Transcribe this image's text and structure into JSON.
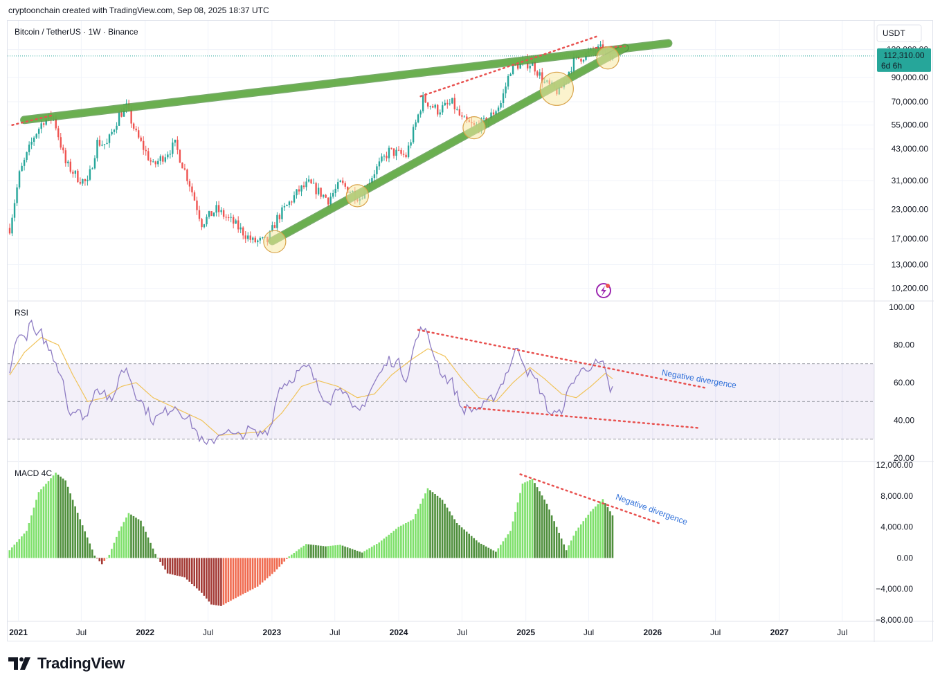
{
  "header": {
    "text": "cryptoonchain created with TradingView.com, Sep 08, 2025 18:37 UTC"
  },
  "symbol": {
    "text": "Bitcoin / TetherUS · 1W · Binance"
  },
  "currency": {
    "text": "USDT"
  },
  "price_badge": {
    "price": "112,310.00",
    "countdown": "6d 6h",
    "color": "#26a69a"
  },
  "footer": {
    "brand": "TradingView"
  },
  "colors": {
    "up": "#26a69a",
    "down": "#ef5350",
    "channel": "#6ab04c",
    "trend_dots": "#e8514f",
    "rsi": "#8e7cc3",
    "rsi_ma": "#f0c35a",
    "circle": "#f7e9a4",
    "text": "#131722",
    "annotation": "#2e6fd9"
  },
  "chart_data": [
    {
      "type": "candlestick",
      "title": "Bitcoin / TetherUS · 1W · Binance",
      "scale": "log",
      "ylim": [
        9000,
        140000
      ],
      "yticks": [
        "120,000.00",
        "90,000.00",
        "70,000.00",
        "55,000.00",
        "43,000.00",
        "31,000.00",
        "23,000.00",
        "17,000.00",
        "13,000.00",
        "10,200.00"
      ],
      "ytick_values": [
        120000,
        90000,
        70000,
        55000,
        43000,
        31000,
        23000,
        17000,
        13000,
        10200
      ],
      "x_range": [
        "2020-12-01",
        "2027-10-01"
      ],
      "xticks": [
        "2021",
        "Jul",
        "2022",
        "Jul",
        "2023",
        "Jul",
        "2024",
        "Jul",
        "2025",
        "Jul",
        "2026",
        "Jul",
        "2027",
        "Jul"
      ],
      "xtick_dates": [
        "2021-01-01",
        "2021-07-01",
        "2022-01-01",
        "2022-07-01",
        "2023-01-01",
        "2023-07-01",
        "2024-01-01",
        "2024-07-01",
        "2025-01-01",
        "2025-07-01",
        "2026-01-01",
        "2026-07-01",
        "2027-01-01",
        "2027-07-01"
      ],
      "close_path": [
        [
          "2020-12-07",
          19000
        ],
        [
          "2021-01-04",
          33000
        ],
        [
          "2021-02-15",
          49000
        ],
        [
          "2021-03-15",
          58000
        ],
        [
          "2021-04-12",
          60000
        ],
        [
          "2021-05-17",
          37000
        ],
        [
          "2021-06-21",
          32000
        ],
        [
          "2021-07-19",
          30000
        ],
        [
          "2021-08-16",
          46000
        ],
        [
          "2021-09-13",
          45000
        ],
        [
          "2021-10-18",
          61000
        ],
        [
          "2021-11-08",
          66000
        ],
        [
          "2021-12-06",
          50000
        ],
        [
          "2022-01-24",
          36000
        ],
        [
          "2022-03-28",
          45000
        ],
        [
          "2022-05-09",
          30000
        ],
        [
          "2022-06-13",
          20000
        ],
        [
          "2022-07-25",
          23000
        ],
        [
          "2022-09-12",
          20000
        ],
        [
          "2022-11-07",
          16500
        ],
        [
          "2022-12-19",
          16600
        ],
        [
          "2023-01-16",
          21000
        ],
        [
          "2023-03-20",
          28000
        ],
        [
          "2023-04-17",
          30000
        ],
        [
          "2023-06-12",
          25500
        ],
        [
          "2023-07-17",
          30000
        ],
        [
          "2023-09-11",
          26000
        ],
        [
          "2023-10-23",
          34000
        ],
        [
          "2023-12-04",
          42000
        ],
        [
          "2024-01-22",
          40000
        ],
        [
          "2024-03-11",
          72000
        ],
        [
          "2024-04-22",
          64000
        ],
        [
          "2024-06-03",
          69000
        ],
        [
          "2024-07-01",
          58000
        ],
        [
          "2024-08-05",
          54000
        ],
        [
          "2024-09-09",
          57000
        ],
        [
          "2024-10-21",
          69000
        ],
        [
          "2024-11-18",
          98000
        ],
        [
          "2024-12-16",
          104000
        ],
        [
          "2025-01-20",
          104000
        ],
        [
          "2025-02-24",
          85000
        ],
        [
          "2025-04-07",
          77000
        ],
        [
          "2025-05-19",
          107000
        ],
        [
          "2025-07-14",
          118000
        ],
        [
          "2025-08-11",
          121000
        ],
        [
          "2025-09-01",
          111000
        ],
        [
          "2025-09-08",
          112310
        ]
      ],
      "last_price": 112310,
      "rising_wedge": {
        "upper_line": [
          [
            "2021-01-18",
            58000
          ],
          [
            "2026-02-15",
            128000
          ]
        ],
        "lower_line": [
          [
            "2023-01-02",
            16600
          ],
          [
            "2025-10-13",
            122000
          ]
        ]
      },
      "trend_lines": [
        [
          [
            "2020-12-14",
            55000
          ],
          [
            "2021-04-12",
            61000
          ]
        ],
        [
          [
            "2024-03-04",
            74000
          ],
          [
            "2025-07-28",
            138000
          ]
        ],
        [
          [
            "2025-07-21",
            122000
          ],
          [
            "2025-10-13",
            124000
          ]
        ]
      ],
      "touch_circles": [
        [
          "2023-01-09",
          16500
        ],
        [
          "2023-09-04",
          26500
        ],
        [
          "2024-08-05",
          53500
        ],
        [
          "2025-03-31",
          80000
        ],
        [
          "2025-08-25",
          110000
        ]
      ]
    },
    {
      "type": "line",
      "title": "RSI",
      "ylim": [
        20,
        100
      ],
      "yticks": [
        "100.00",
        "80.00",
        "60.00",
        "40.00",
        "20.00"
      ],
      "ytick_values": [
        100,
        80,
        60,
        40,
        20
      ],
      "bands": [
        30,
        50,
        70
      ],
      "series": [
        {
          "values": [
            [
              "2020-12-07",
              68
            ],
            [
              "2020-12-21",
              78
            ],
            [
              "2021-01-04",
              88
            ],
            [
              "2021-01-18",
              82
            ],
            [
              "2021-02-08",
              92
            ],
            [
              "2021-02-22",
              83
            ],
            [
              "2021-03-08",
              86
            ],
            [
              "2021-03-29",
              78
            ],
            [
              "2021-04-12",
              74
            ],
            [
              "2021-05-10",
              62
            ],
            [
              "2021-05-24",
              46
            ],
            [
              "2021-06-21",
              44
            ],
            [
              "2021-07-19",
              42
            ],
            [
              "2021-08-09",
              58
            ],
            [
              "2021-09-06",
              55
            ],
            [
              "2021-09-27",
              48
            ],
            [
              "2021-10-18",
              64
            ],
            [
              "2021-11-08",
              68
            ],
            [
              "2021-12-06",
              54
            ],
            [
              "2022-01-03",
              46
            ],
            [
              "2022-01-24",
              40
            ],
            [
              "2022-03-28",
              48
            ],
            [
              "2022-05-09",
              40
            ],
            [
              "2022-06-13",
              29
            ],
            [
              "2022-06-27",
              26
            ],
            [
              "2022-08-15",
              35
            ],
            [
              "2022-09-19",
              31
            ],
            [
              "2022-10-31",
              35
            ],
            [
              "2022-11-21",
              32
            ],
            [
              "2022-12-26",
              36
            ],
            [
              "2023-01-23",
              58
            ],
            [
              "2023-02-20",
              61
            ],
            [
              "2023-03-20",
              66
            ],
            [
              "2023-04-17",
              68
            ],
            [
              "2023-05-22",
              54
            ],
            [
              "2023-06-19",
              51
            ],
            [
              "2023-07-17",
              60
            ],
            [
              "2023-08-21",
              45
            ],
            [
              "2023-09-11",
              45
            ],
            [
              "2023-10-23",
              60
            ],
            [
              "2023-12-04",
              72
            ],
            [
              "2024-01-01",
              70
            ],
            [
              "2024-01-22",
              62
            ],
            [
              "2024-02-19",
              82
            ],
            [
              "2024-03-11",
              90
            ],
            [
              "2024-04-01",
              80
            ],
            [
              "2024-05-06",
              64
            ],
            [
              "2024-06-03",
              60
            ],
            [
              "2024-07-01",
              46
            ],
            [
              "2024-08-05",
              46
            ],
            [
              "2024-09-09",
              48
            ],
            [
              "2024-10-14",
              56
            ],
            [
              "2024-11-18",
              70
            ],
            [
              "2024-12-09",
              79
            ],
            [
              "2025-01-06",
              66
            ],
            [
              "2025-02-03",
              60
            ],
            [
              "2025-03-10",
              44
            ],
            [
              "2025-04-07",
              43
            ],
            [
              "2025-05-19",
              62
            ],
            [
              "2025-06-16",
              67
            ],
            [
              "2025-07-14",
              70
            ],
            [
              "2025-08-11",
              69
            ],
            [
              "2025-09-01",
              56
            ],
            [
              "2025-09-08",
              57
            ]
          ],
          "color": "#8e7cc3"
        },
        {
          "values": [
            [
              "2020-12-07",
              64
            ],
            [
              "2021-01-18",
              76
            ],
            [
              "2021-03-08",
              84
            ],
            [
              "2021-04-26",
              80
            ],
            [
              "2021-06-07",
              64
            ],
            [
              "2021-07-19",
              50
            ],
            [
              "2021-09-06",
              52
            ],
            [
              "2021-10-25",
              58
            ],
            [
              "2021-12-06",
              60
            ],
            [
              "2022-01-24",
              52
            ],
            [
              "2022-04-04",
              46
            ],
            [
              "2022-06-13",
              40
            ],
            [
              "2022-08-01",
              32
            ],
            [
              "2022-10-03",
              33
            ],
            [
              "2022-12-05",
              34
            ],
            [
              "2023-01-30",
              44
            ],
            [
              "2023-03-27",
              58
            ],
            [
              "2023-05-15",
              61
            ],
            [
              "2023-07-10",
              58
            ],
            [
              "2023-09-04",
              52
            ],
            [
              "2023-10-23",
              54
            ],
            [
              "2023-12-11",
              64
            ],
            [
              "2024-02-05",
              72
            ],
            [
              "2024-03-25",
              78
            ],
            [
              "2024-05-13",
              74
            ],
            [
              "2024-07-01",
              62
            ],
            [
              "2024-08-19",
              52
            ],
            [
              "2024-10-07",
              50
            ],
            [
              "2024-11-25",
              60
            ],
            [
              "2025-01-13",
              68
            ],
            [
              "2025-02-24",
              62
            ],
            [
              "2025-04-14",
              54
            ],
            [
              "2025-05-26",
              52
            ],
            [
              "2025-07-07",
              58
            ],
            [
              "2025-08-18",
              65
            ],
            [
              "2025-09-08",
              62
            ]
          ],
          "color": "#f0c35a"
        }
      ],
      "trend_lines": [
        [
          [
            "2024-02-26",
            88
          ],
          [
            "2026-06-08",
            57
          ]
        ],
        [
          [
            "2024-07-08",
            47
          ],
          [
            "2026-05-11",
            36
          ]
        ]
      ],
      "annotation": {
        "text": "Negative divergence",
        "x": "2026-01-26",
        "y": 64
      }
    },
    {
      "type": "bar",
      "title": "MACD 4C",
      "ylim": [
        -8000,
        12000
      ],
      "yticks": [
        "12,000.00",
        "8,000.00",
        "4,000.00",
        "0.00",
        "−4,000.00",
        "−8,000.00"
      ],
      "ytick_values": [
        12000,
        8000,
        4000,
        0,
        -4000,
        -8000
      ],
      "histogram_path": [
        [
          "2020-12-07",
          1000
        ],
        [
          "2021-01-25",
          3500
        ],
        [
          "2021-03-01",
          8500
        ],
        [
          "2021-04-19",
          11000
        ],
        [
          "2021-05-17",
          10000
        ],
        [
          "2021-06-28",
          5000
        ],
        [
          "2021-08-09",
          300
        ],
        [
          "2021-08-30",
          -800
        ],
        [
          "2021-09-20",
          400
        ],
        [
          "2021-10-18",
          3500
        ],
        [
          "2021-11-15",
          5800
        ],
        [
          "2021-12-20",
          4800
        ],
        [
          "2022-01-31",
          500
        ],
        [
          "2022-03-07",
          -2000
        ],
        [
          "2022-04-25",
          -2500
        ],
        [
          "2022-06-13",
          -4500
        ],
        [
          "2022-07-11",
          -6000
        ],
        [
          "2022-08-08",
          -6200
        ],
        [
          "2022-09-26",
          -5000
        ],
        [
          "2022-11-21",
          -3700
        ],
        [
          "2023-01-09",
          -1800
        ],
        [
          "2023-02-20",
          200
        ],
        [
          "2023-04-10",
          1800
        ],
        [
          "2023-06-05",
          1500
        ],
        [
          "2023-07-17",
          1700
        ],
        [
          "2023-09-18",
          700
        ],
        [
          "2023-11-06",
          2000
        ],
        [
          "2024-01-01",
          4000
        ],
        [
          "2024-02-12",
          5000
        ],
        [
          "2024-03-25",
          9000
        ],
        [
          "2024-05-06",
          7500
        ],
        [
          "2024-06-17",
          4500
        ],
        [
          "2024-08-19",
          2000
        ],
        [
          "2024-10-07",
          800
        ],
        [
          "2024-11-18",
          3500
        ],
        [
          "2024-12-23",
          9600
        ],
        [
          "2025-01-20",
          10200
        ],
        [
          "2025-03-03",
          7000
        ],
        [
          "2025-04-28",
          1000
        ],
        [
          "2025-05-26",
          3500
        ],
        [
          "2025-07-07",
          6000
        ],
        [
          "2025-08-11",
          7600
        ],
        [
          "2025-09-08",
          5500
        ]
      ],
      "trend_lines": [
        [
          [
            "2024-12-16",
            10800
          ],
          [
            "2026-01-19",
            4500
          ]
        ]
      ],
      "annotation": {
        "text": "Negative divergence",
        "x": "2025-09-15",
        "y": 7600
      }
    }
  ]
}
